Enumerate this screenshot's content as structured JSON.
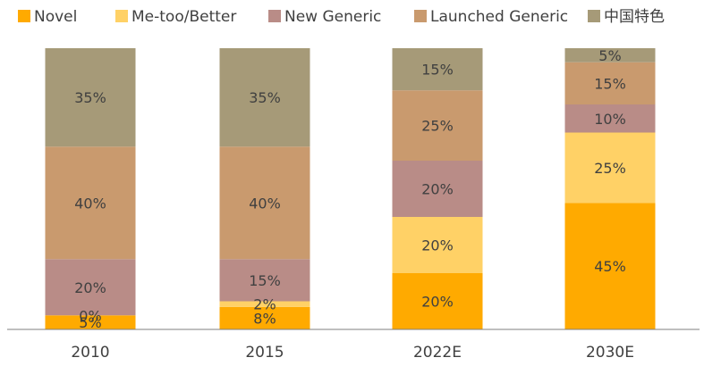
{
  "chart_data": {
    "type": "bar",
    "stacked": true,
    "categories": [
      "2010",
      "2015",
      "2022E",
      "2030E"
    ],
    "series": [
      {
        "name": "Novel",
        "color": "#FFAA00",
        "values": [
          5,
          8,
          20,
          45
        ],
        "labels": [
          "5%",
          "8%",
          "20%",
          "45%"
        ]
      },
      {
        "name": "Me-too/Better",
        "color": "#FFD166",
        "values": [
          0,
          2,
          20,
          25
        ],
        "labels": [
          "0%",
          "2%",
          "20%",
          "25%"
        ]
      },
      {
        "name": "New Generic",
        "color": "#B98C87",
        "values": [
          20,
          15,
          20,
          10
        ],
        "labels": [
          "20%",
          "15%",
          "20%",
          "10%"
        ]
      },
      {
        "name": "Launched Generic",
        "color": "#C99A6E",
        "values": [
          40,
          40,
          25,
          15
        ],
        "labels": [
          "40%",
          "40%",
          "25%",
          "15%"
        ]
      },
      {
        "name": "中国特色",
        "color": "#A69A78",
        "values": [
          35,
          35,
          15,
          5
        ],
        "labels": [
          "35%",
          "35%",
          "15%",
          "5%"
        ]
      }
    ],
    "ylim": [
      0,
      100
    ],
    "grid": false,
    "legend_position": "top"
  }
}
